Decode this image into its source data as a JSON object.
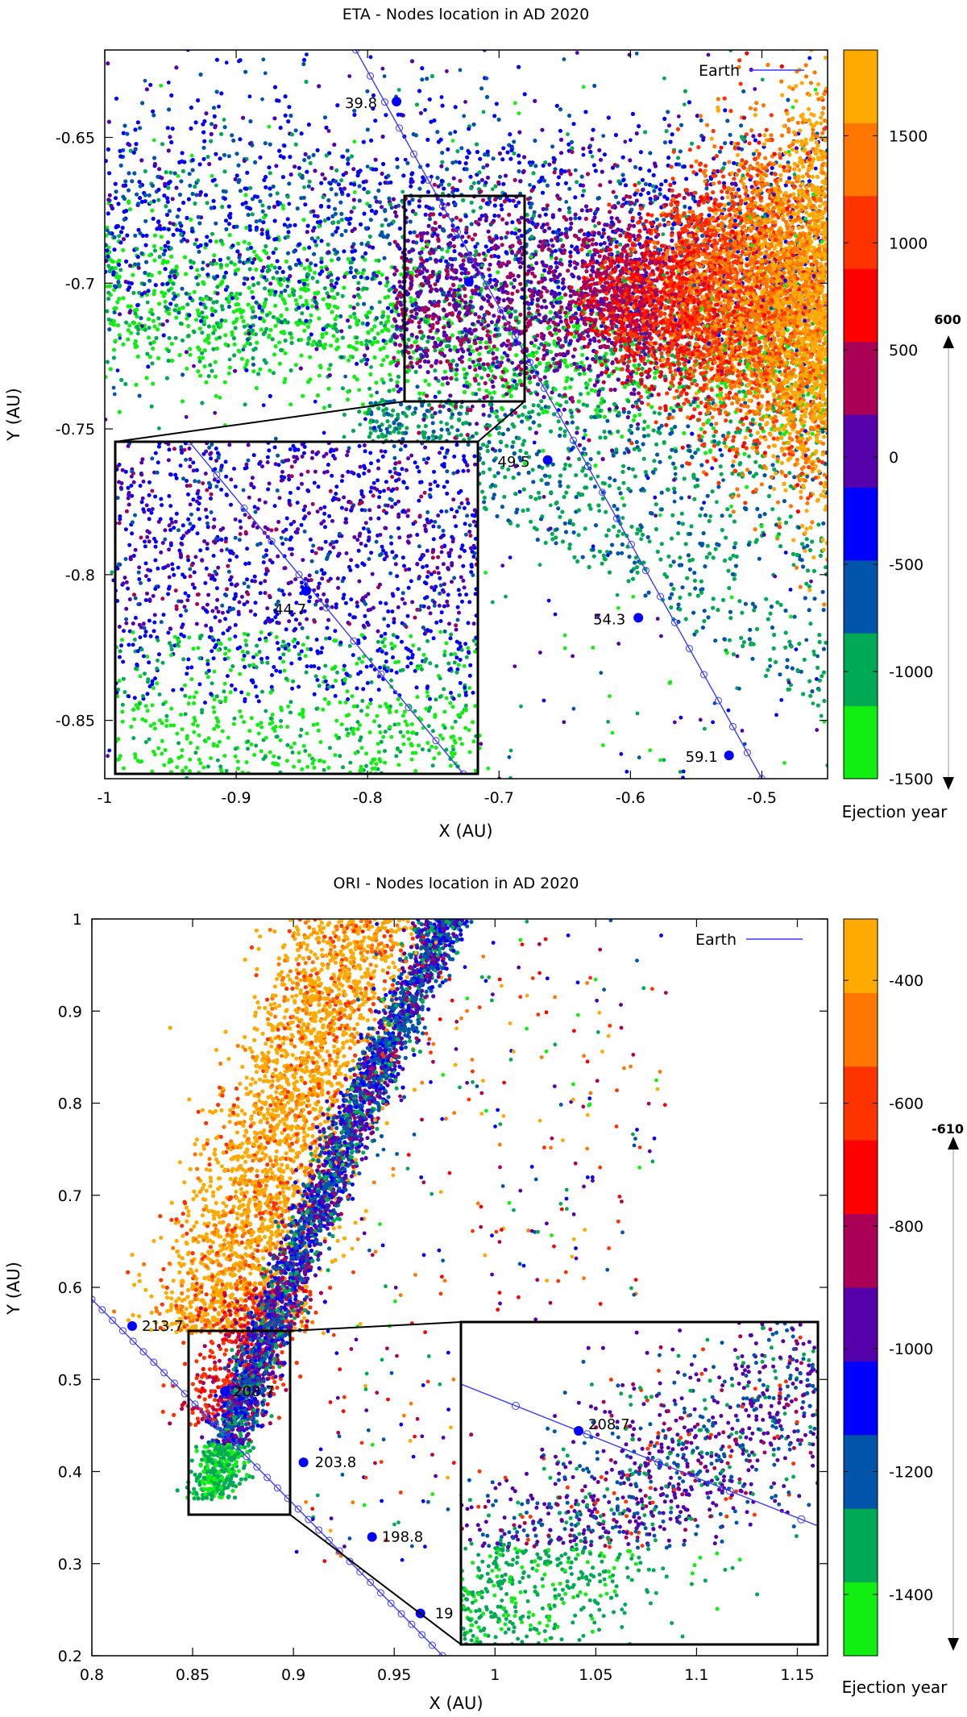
{
  "chart_data": [
    {
      "type": "scatter",
      "title": "ETA - Nodes location in AD 2020",
      "xlabel": "X (AU)",
      "ylabel": "Y (AU)",
      "xlim": [
        -1.0,
        -0.45
      ],
      "ylim": [
        -0.87,
        -0.62
      ],
      "xticks": [
        -1,
        -0.9,
        -0.8,
        -0.7,
        -0.6,
        -0.5
      ],
      "yticks": [
        -0.65,
        -0.7,
        -0.75,
        -0.8,
        -0.85
      ],
      "legend": {
        "label": "Earth",
        "position": "top-right"
      },
      "earth_track": {
        "start": [
          -0.809,
          -0.62
        ],
        "end": [
          -0.5,
          -0.87
        ],
        "labeled_points": [
          {
            "label": "39.8",
            "x": -0.778,
            "y": -0.6377
          },
          {
            "label": "44.7",
            "x": -0.723,
            "y": -0.6995
          },
          {
            "label": "49.5",
            "x": -0.663,
            "y": -0.7607
          },
          {
            "label": "54.3",
            "x": -0.594,
            "y": -0.8148
          },
          {
            "label": "59.1",
            "x": -0.525,
            "y": -0.862
          }
        ]
      },
      "inset": {
        "region": {
          "xlim": [
            -0.77,
            -0.68
          ],
          "ylim": [
            -0.74,
            -0.67
          ]
        },
        "point_label": "44.7"
      },
      "colorbar": {
        "label": "Ejection year",
        "range": [
          -1500,
          1900
        ],
        "ticks": [
          1500,
          1000,
          500,
          0,
          -500,
          -1000,
          -1500
        ],
        "colors": [
          "#11ee11",
          "#00aa55",
          "#0055aa",
          "#0000ff",
          "#5500aa",
          "#aa0055",
          "#ff0000",
          "#ff3300",
          "#ff7700",
          "#ffaa00"
        ],
        "marker_label": "600"
      }
    },
    {
      "type": "scatter",
      "title": "ORI - Nodes location in AD 2020",
      "xlabel": "X (AU)",
      "ylabel": "Y (AU)",
      "xlim": [
        0.8,
        1.165
      ],
      "ylim": [
        0.2,
        1.0
      ],
      "xticks": [
        0.8,
        0.85,
        0.9,
        0.95,
        1,
        1.05,
        1.1,
        1.15
      ],
      "yticks": [
        1,
        0.9,
        0.8,
        0.7,
        0.6,
        0.5,
        0.4,
        0.3,
        0.2
      ],
      "legend": {
        "label": "Earth",
        "position": "top-right"
      },
      "earth_track": {
        "start": [
          0.8,
          0.587
        ],
        "end": [
          0.974,
          0.2
        ],
        "labeled_points": [
          {
            "label": "213.7",
            "x": 0.82,
            "y": 0.558
          },
          {
            "label": "208.7",
            "x": 0.866,
            "y": 0.487
          },
          {
            "label": "203.8",
            "x": 0.905,
            "y": 0.41
          },
          {
            "label": "198.8",
            "x": 0.939,
            "y": 0.329
          },
          {
            "label": "19",
            "x": 0.963,
            "y": 0.246
          }
        ]
      },
      "inset": {
        "region": {
          "xlim": [
            0.85,
            0.9
          ],
          "ylim": [
            0.35,
            0.55
          ]
        },
        "point_label": "208.7"
      },
      "colorbar": {
        "label": "Ejection year",
        "range": [
          -1500,
          -300
        ],
        "ticks": [
          -400,
          -600,
          -800,
          -1000,
          -1200,
          -1400
        ],
        "colors": [
          "#11ee11",
          "#00aa55",
          "#0055aa",
          "#0000ff",
          "#5500aa",
          "#aa0055",
          "#ff0000",
          "#ff3300",
          "#ff7700",
          "#ffaa00"
        ],
        "marker_label": "-610"
      }
    }
  ]
}
